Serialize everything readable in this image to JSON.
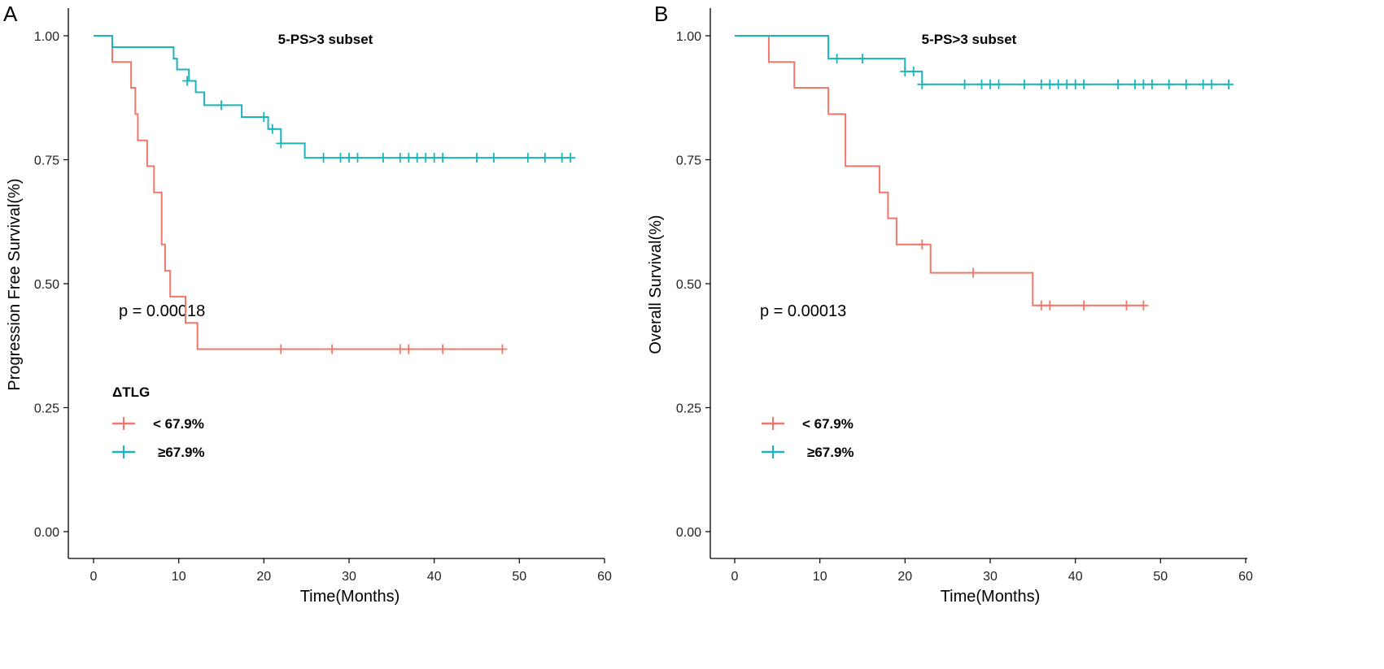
{
  "colors": {
    "low": "#f0776a",
    "high": "#1ab5b8"
  },
  "chart_data": [
    {
      "type": "line",
      "subtype": "kaplan-meier",
      "panel_label": "A",
      "title": "5-PS>3 subset",
      "xlabel": "Time(Months)",
      "ylabel": "Progression Free Survival(%)",
      "xlim": [
        0,
        60
      ],
      "ylim": [
        0,
        1
      ],
      "x_ticks": [
        0,
        10,
        20,
        30,
        40,
        50,
        60
      ],
      "x_tick_labels": [
        "0",
        "10",
        "20",
        "30",
        "40",
        "50",
        "60"
      ],
      "y_ticks": [
        0,
        0.25,
        0.5,
        0.75,
        1.0
      ],
      "y_tick_labels": [
        "0.00",
        "0.25",
        "0.50",
        "0.75",
        "1.00"
      ],
      "p_value": "p = 0.00018",
      "legend_title": "ΔTLG",
      "legend_position": "bottom-left",
      "series": [
        {
          "name": "< 67.9%",
          "legend_label": "< 67.9%",
          "color_key": "low",
          "steps": [
            [
              0,
              1.0
            ],
            [
              2.2,
              0.947
            ],
            [
              4.4,
              0.895
            ],
            [
              4.9,
              0.842
            ],
            [
              5.2,
              0.789
            ],
            [
              6.3,
              0.737
            ],
            [
              7.1,
              0.684
            ],
            [
              8.0,
              0.579
            ],
            [
              8.4,
              0.526
            ],
            [
              9.0,
              0.474
            ],
            [
              10.8,
              0.421
            ],
            [
              12.2,
              0.368
            ],
            [
              48,
              0.368
            ]
          ],
          "censors": [
            [
              22,
              0.368
            ],
            [
              28,
              0.368
            ],
            [
              36,
              0.368
            ],
            [
              37,
              0.368
            ],
            [
              41,
              0.368
            ],
            [
              48,
              0.368
            ]
          ]
        },
        {
          "name": "≥67.9%",
          "legend_label": "≥67.9%",
          "color_key": "high",
          "steps": [
            [
              0,
              1.0
            ],
            [
              2.2,
              0.977
            ],
            [
              9.4,
              0.954
            ],
            [
              9.8,
              0.932
            ],
            [
              11.2,
              0.909
            ],
            [
              12.0,
              0.886
            ],
            [
              13.0,
              0.86
            ],
            [
              17.4,
              0.836
            ],
            [
              20.5,
              0.812
            ],
            [
              22.0,
              0.783
            ],
            [
              24.8,
              0.754
            ],
            [
              56,
              0.754
            ]
          ],
          "censors": [
            [
              11,
              0.909
            ],
            [
              15,
              0.86
            ],
            [
              20,
              0.836
            ],
            [
              21,
              0.812
            ],
            [
              22,
              0.783
            ],
            [
              27,
              0.754
            ],
            [
              29,
              0.754
            ],
            [
              30,
              0.754
            ],
            [
              31,
              0.754
            ],
            [
              34,
              0.754
            ],
            [
              36,
              0.754
            ],
            [
              37,
              0.754
            ],
            [
              38,
              0.754
            ],
            [
              39,
              0.754
            ],
            [
              40,
              0.754
            ],
            [
              41,
              0.754
            ],
            [
              45,
              0.754
            ],
            [
              47,
              0.754
            ],
            [
              51,
              0.754
            ],
            [
              53,
              0.754
            ],
            [
              55,
              0.754
            ],
            [
              56,
              0.754
            ]
          ]
        }
      ]
    },
    {
      "type": "line",
      "subtype": "kaplan-meier",
      "panel_label": "B",
      "title": "5-PS>3 subset",
      "xlabel": "Time(Months)",
      "ylabel": "Overall Survival(%)",
      "xlim": [
        0,
        60
      ],
      "ylim": [
        0,
        1
      ],
      "x_ticks": [
        0,
        10,
        20,
        30,
        40,
        50,
        60
      ],
      "x_tick_labels": [
        "0",
        "10",
        "20",
        "30",
        "40",
        "50",
        "60"
      ],
      "y_ticks": [
        0,
        0.25,
        0.5,
        0.75,
        1.0
      ],
      "y_tick_labels": [
        "0.00",
        "0.25",
        "0.50",
        "0.75",
        "1.00"
      ],
      "p_value": "p = 0.00013",
      "legend_title": "",
      "legend_position": "bottom-left",
      "series": [
        {
          "name": "< 67.9%",
          "legend_label": "< 67.9%",
          "color_key": "low",
          "steps": [
            [
              0,
              1.0
            ],
            [
              4.0,
              0.947
            ],
            [
              7.0,
              0.895
            ],
            [
              11.0,
              0.842
            ],
            [
              13.0,
              0.737
            ],
            [
              17.0,
              0.684
            ],
            [
              18.0,
              0.632
            ],
            [
              19.0,
              0.579
            ],
            [
              23.0,
              0.522
            ],
            [
              35.0,
              0.456
            ],
            [
              48,
              0.456
            ]
          ],
          "censors": [
            [
              22,
              0.579
            ],
            [
              28,
              0.522
            ],
            [
              36,
              0.456
            ],
            [
              37,
              0.456
            ],
            [
              41,
              0.456
            ],
            [
              46,
              0.456
            ],
            [
              48,
              0.456
            ]
          ]
        },
        {
          "name": "≥67.9%",
          "legend_label": "≥67.9%",
          "color_key": "high",
          "steps": [
            [
              0,
              1.0
            ],
            [
              11.0,
              0.954
            ],
            [
              20.0,
              0.928
            ],
            [
              22.0,
              0.902
            ],
            [
              58,
              0.902
            ]
          ],
          "censors": [
            [
              12,
              0.954
            ],
            [
              15,
              0.954
            ],
            [
              20,
              0.928
            ],
            [
              21,
              0.928
            ],
            [
              22,
              0.902
            ],
            [
              27,
              0.902
            ],
            [
              29,
              0.902
            ],
            [
              30,
              0.902
            ],
            [
              31,
              0.902
            ],
            [
              34,
              0.902
            ],
            [
              36,
              0.902
            ],
            [
              37,
              0.902
            ],
            [
              38,
              0.902
            ],
            [
              39,
              0.902
            ],
            [
              40,
              0.902
            ],
            [
              41,
              0.902
            ],
            [
              45,
              0.902
            ],
            [
              47,
              0.902
            ],
            [
              48,
              0.902
            ],
            [
              49,
              0.902
            ],
            [
              51,
              0.902
            ],
            [
              53,
              0.902
            ],
            [
              55,
              0.902
            ],
            [
              56,
              0.902
            ],
            [
              58,
              0.902
            ]
          ]
        }
      ]
    }
  ]
}
